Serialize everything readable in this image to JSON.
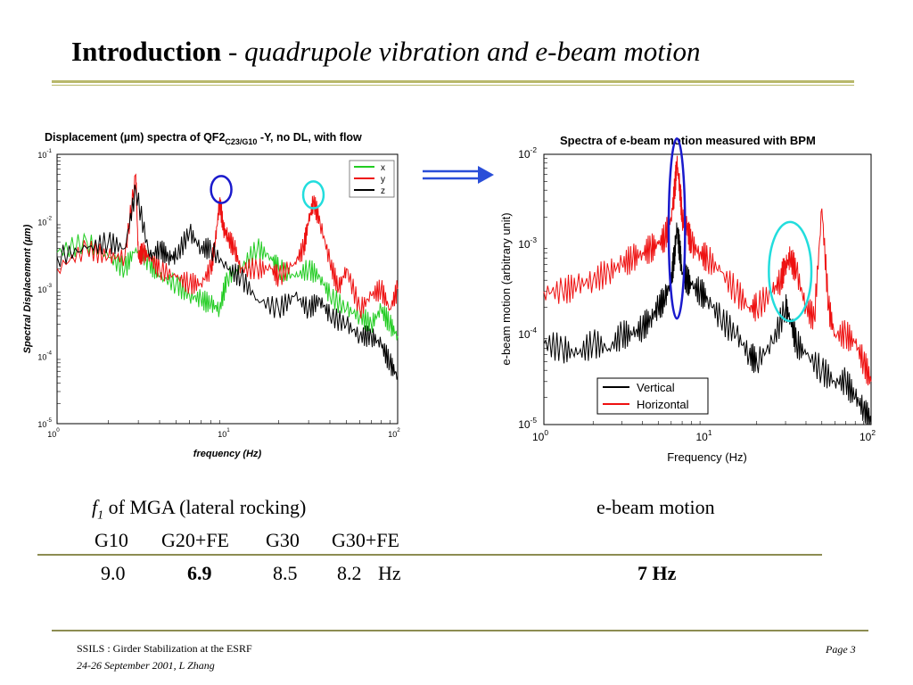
{
  "slide": {
    "title_bold": "Introduction",
    "title_sep": " - ",
    "title_italic": "quadrupole vibration and e-beam motion",
    "footer_line1": "SSILS  : Girder Stabilization at the ESRF",
    "footer_line2": "24-26 September 2001,   L Zhang",
    "page": "Page 3"
  },
  "table": {
    "f1_symbol": "f",
    "f1_sub": "1",
    "f1_rest": " of MGA (lateral rocking)",
    "ebeam_label": "e-beam motion",
    "girders": [
      "G10",
      "G20+FE",
      "G30",
      "G30+FE"
    ],
    "freqs": [
      "9.0",
      "6.9",
      "8.5",
      "8.2"
    ],
    "unit": "Hz",
    "ebeam_value": "7 Hz"
  },
  "colors": {
    "x": "#22cc22",
    "y": "#ee1111",
    "z": "#000000",
    "blue_circle": "#1a1acc",
    "cyan_circle": "#22dddd",
    "arrow": "#2a4ed8",
    "accent_rule": "#b8b86a"
  },
  "icons": {
    "arrow": "double-arrow-right-icon"
  },
  "chart_data": [
    {
      "type": "line",
      "title_prefix": "Displacement (µm) spectra of  QF2",
      "title_sub": "C23/G10",
      "title_suffix": " -Y, no DL, with flow",
      "xlabel": "frequency  (Hz)",
      "ylabel": "Spectral Displacement (µm)",
      "xscale": "log",
      "yscale": "log",
      "xlim": [
        1,
        100
      ],
      "ylim": [
        1e-05,
        0.1
      ],
      "legend_position": "top-right",
      "x_ticks": [
        {
          "base": "10",
          "exp": "0"
        },
        {
          "base": "10",
          "exp": "1"
        },
        {
          "base": "10",
          "exp": "2"
        }
      ],
      "y_ticks": [
        {
          "base": "10",
          "exp": "-5"
        },
        {
          "base": "10",
          "exp": "-4"
        },
        {
          "base": "10",
          "exp": "-3"
        },
        {
          "base": "10",
          "exp": "-2"
        },
        {
          "base": "10",
          "exp": "-1"
        }
      ],
      "series": [
        {
          "name": "x",
          "color": "#22cc22",
          "x": [
            1,
            1.5,
            2,
            2.5,
            2.9,
            3.5,
            4,
            5,
            6,
            7,
            8,
            9,
            10,
            12,
            15,
            18,
            20,
            25,
            30,
            35,
            40,
            50,
            60,
            70,
            80,
            90,
            100
          ],
          "y": [
            0.0035,
            0.005,
            0.003,
            0.002,
            0.004,
            0.0025,
            0.0015,
            0.0012,
            0.0008,
            0.0007,
            0.0006,
            0.0005,
            0.0015,
            0.002,
            0.004,
            0.003,
            0.002,
            0.0015,
            0.002,
            0.0015,
            0.0008,
            0.0005,
            0.0004,
            0.0003,
            0.0005,
            0.0003,
            0.0002
          ]
        },
        {
          "name": "y",
          "color": "#ee1111",
          "x": [
            1,
            1.5,
            2,
            2.5,
            2.9,
            3,
            3.2,
            3.5,
            4,
            5,
            6,
            7,
            8,
            8.5,
            9,
            9.5,
            10,
            11,
            12,
            15,
            18,
            20,
            25,
            28,
            30,
            32,
            35,
            40,
            45,
            50,
            60,
            70,
            80,
            90,
            100
          ],
          "y": [
            0.002,
            0.004,
            0.003,
            0.003,
            0.05,
            0.003,
            0.0035,
            0.003,
            0.002,
            0.0015,
            0.0012,
            0.0012,
            0.002,
            0.005,
            0.02,
            0.008,
            0.006,
            0.004,
            0.002,
            0.002,
            0.002,
            0.0015,
            0.0025,
            0.004,
            0.01,
            0.02,
            0.01,
            0.0025,
            0.001,
            0.002,
            0.0005,
            0.0008,
            0.001,
            0.0005,
            0.001
          ]
        },
        {
          "name": "z",
          "color": "#000000",
          "x": [
            1,
            1.5,
            2,
            2.5,
            2.9,
            3.5,
            4,
            4.5,
            5,
            6,
            7,
            8,
            10,
            12,
            15,
            20,
            25,
            30,
            35,
            40,
            50,
            60,
            70,
            80,
            90,
            100
          ],
          "y": [
            0.003,
            0.004,
            0.005,
            0.004,
            0.03,
            0.003,
            0.004,
            0.003,
            0.003,
            0.007,
            0.004,
            0.004,
            0.002,
            0.0015,
            0.0007,
            0.0005,
            0.0008,
            0.0005,
            0.0007,
            0.0004,
            0.0003,
            0.0002,
            0.0002,
            0.00015,
            8e-05,
            5e-05
          ]
        }
      ],
      "annotations": [
        {
          "type": "ellipse",
          "color": "#1a1acc",
          "cx": 9.2,
          "cy": 0.03,
          "rx_decades": 0.06,
          "ry_decades": 0.2
        },
        {
          "type": "ellipse",
          "color": "#22dddd",
          "cx": 32,
          "cy": 0.025,
          "rx_decades": 0.06,
          "ry_decades": 0.2
        }
      ]
    },
    {
      "type": "line",
      "title": "Spectra of e-beam motion measured with BPM",
      "xlabel": "Frequency  (Hz)",
      "ylabel": "e-beam motion (arbitrary unit)",
      "xscale": "log",
      "yscale": "log",
      "xlim": [
        1,
        100
      ],
      "ylim": [
        1e-05,
        0.01
      ],
      "legend_position": "bottom-center",
      "x_ticks": [
        {
          "base": "10",
          "exp": "0"
        },
        {
          "base": "10",
          "exp": "1"
        },
        {
          "base": "10",
          "exp": "2"
        }
      ],
      "y_ticks": [
        {
          "base": "10",
          "exp": "-5"
        },
        {
          "base": "10",
          "exp": "-4"
        },
        {
          "base": "10",
          "exp": "-3"
        },
        {
          "base": "10",
          "exp": "-2"
        }
      ],
      "series": [
        {
          "name": "Vertical",
          "color": "#000000",
          "x": [
            1,
            1.3,
            1.6,
            2,
            2.5,
            3,
            3.5,
            4,
            4.5,
            5,
            5.5,
            6,
            6.3,
            6.5,
            6.8,
            7,
            7.5,
            8,
            9,
            10,
            12,
            15,
            18,
            20,
            25,
            30,
            32,
            35,
            40,
            50,
            60,
            70,
            80,
            90,
            100
          ],
          "y": [
            8e-05,
            7e-05,
            6e-05,
            8e-05,
            7e-05,
            0.0001,
            0.0001,
            0.00012,
            0.00015,
            0.0002,
            0.00025,
            0.0004,
            0.0008,
            0.0015,
            0.0008,
            0.0005,
            0.0004,
            0.00035,
            0.0003,
            0.00025,
            0.00015,
            0.0001,
            6e-05,
            5e-05,
            8e-05,
            0.0002,
            0.00015,
            8e-05,
            6e-05,
            4e-05,
            3e-05,
            3e-05,
            2e-05,
            1.5e-05,
            1e-05
          ]
        },
        {
          "name": "Horizontal",
          "color": "#ee1111",
          "x": [
            1,
            1.3,
            1.6,
            2,
            2.5,
            3,
            3.5,
            4,
            4.5,
            5,
            5.5,
            6,
            6.3,
            6.5,
            6.8,
            7,
            7.5,
            8,
            9,
            10,
            12,
            15,
            18,
            20,
            25,
            28,
            30,
            32,
            35,
            40,
            45,
            50,
            55,
            60,
            70,
            80,
            90,
            100
          ],
          "y": [
            0.0003,
            0.0003,
            0.00035,
            0.0004,
            0.0005,
            0.0006,
            0.0007,
            0.0008,
            0.0009,
            0.001,
            0.0012,
            0.002,
            0.004,
            0.008,
            0.004,
            0.002,
            0.0015,
            0.001,
            0.0008,
            0.0007,
            0.0005,
            0.0003,
            0.0002,
            0.0002,
            0.0003,
            0.0004,
            0.0006,
            0.0007,
            0.0005,
            0.0002,
            0.00015,
            0.0025,
            0.0002,
            0.0001,
            0.0001,
            8e-05,
            5e-05,
            3e-05
          ]
        }
      ],
      "annotations": [
        {
          "type": "ellipse",
          "color": "#1a1acc",
          "cx": 6.5,
          "cy": 0.0015,
          "rx_decades": 0.05,
          "ry_decades": 1.0
        },
        {
          "type": "ellipse",
          "color": "#22dddd",
          "cx": 32,
          "cy": 0.0005,
          "rx_decades": 0.13,
          "ry_decades": 0.55
        }
      ]
    }
  ]
}
